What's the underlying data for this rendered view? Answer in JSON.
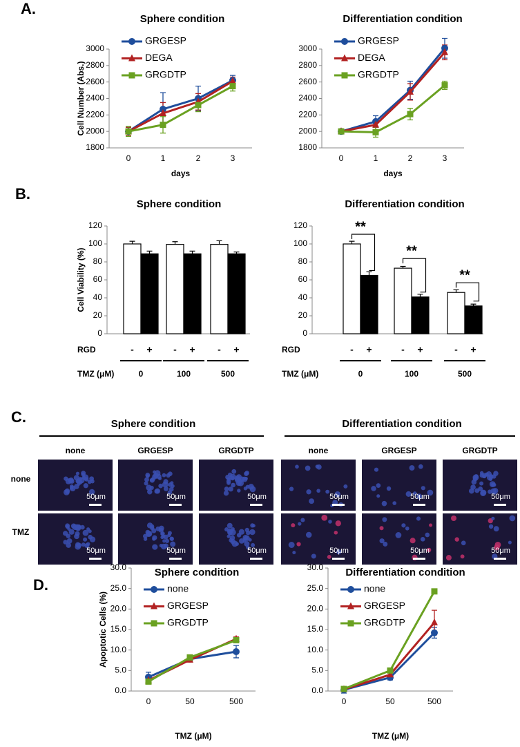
{
  "panel_labels": [
    "A.",
    "B.",
    "C.",
    "D."
  ],
  "panel_c": {
    "groups": [
      "Sphere condition",
      "Differentiation condition"
    ],
    "columns": [
      "none",
      "GRGESP",
      "GRGDTP"
    ],
    "rows": [
      "none",
      "TMZ"
    ],
    "scale_bar": "50μm"
  },
  "chart_data": [
    {
      "type": "line",
      "title": "Sphere condition",
      "y_label": "Cell Number  (Abs.)",
      "x_label": "days",
      "categories": [
        "0",
        "1",
        "2",
        "3"
      ],
      "ylim": [
        1800,
        3000
      ],
      "yticks": [
        1800,
        2000,
        2200,
        2400,
        2600,
        2800,
        3000
      ],
      "series": [
        {
          "name": "GRGESP",
          "color": "#1f4e9c",
          "values": [
            2000,
            2270,
            2400,
            2620
          ],
          "errors": [
            50,
            200,
            150,
            60
          ]
        },
        {
          "name": "DEGA",
          "color": "#b22222",
          "values": [
            2000,
            2220,
            2360,
            2610
          ],
          "errors": [
            50,
            130,
            100,
            50
          ]
        },
        {
          "name": "GRGDTP",
          "color": "#6aa121",
          "values": [
            2000,
            2080,
            2320,
            2550
          ],
          "errors": [
            60,
            100,
            80,
            60
          ]
        }
      ]
    },
    {
      "type": "line",
      "title": "Differentiation condition",
      "x_label": "days",
      "categories": [
        "0",
        "1",
        "2",
        "3"
      ],
      "ylim": [
        1800,
        3000
      ],
      "yticks": [
        1800,
        2000,
        2200,
        2400,
        2600,
        2800,
        3000
      ],
      "series": [
        {
          "name": "GRGESP",
          "color": "#1f4e9c",
          "values": [
            2000,
            2120,
            2500,
            3010
          ],
          "errors": [
            30,
            70,
            110,
            120
          ]
        },
        {
          "name": "DEGA",
          "color": "#b22222",
          "values": [
            2000,
            2080,
            2480,
            2960
          ],
          "errors": [
            30,
            60,
            100,
            90
          ]
        },
        {
          "name": "GRGDTP",
          "color": "#6aa121",
          "values": [
            2000,
            1990,
            2210,
            2560
          ],
          "errors": [
            30,
            60,
            70,
            50
          ]
        }
      ]
    },
    {
      "type": "bar",
      "title": "Sphere condition",
      "y_label": "Cell Viability (%)",
      "series_label": "RGD",
      "x_label": "TMZ (μM)",
      "categories": [
        "0",
        "100",
        "500"
      ],
      "ylim": [
        0,
        120
      ],
      "yticks": [
        0,
        20,
        40,
        60,
        80,
        100,
        120
      ],
      "series": [
        {
          "name": "-",
          "color": "#ffffff",
          "values": [
            100,
            99.5,
            99.5
          ],
          "errors": [
            3,
            3,
            4
          ]
        },
        {
          "name": "+",
          "color": "#000000",
          "values": [
            89,
            89,
            89
          ],
          "errors": [
            3,
            3,
            2
          ]
        }
      ]
    },
    {
      "type": "bar",
      "title": "Differentiation condition",
      "series_label": "RGD",
      "x_label": "TMZ (μM)",
      "categories": [
        "0",
        "100",
        "500"
      ],
      "ylim": [
        0,
        120
      ],
      "yticks": [
        0,
        20,
        40,
        60,
        80,
        100,
        120
      ],
      "annotations": [
        "**",
        "**",
        "**"
      ],
      "series": [
        {
          "name": "-",
          "color": "#ffffff",
          "values": [
            100,
            73,
            46
          ],
          "errors": [
            3,
            2,
            3
          ]
        },
        {
          "name": "+",
          "color": "#000000",
          "values": [
            65,
            41,
            31
          ],
          "errors": [
            4,
            3,
            2
          ]
        }
      ]
    },
    {
      "type": "line",
      "title": "Sphere condition",
      "y_label": "Apoptotic Cells (%)",
      "x_label": "TMZ (μM)",
      "categories": [
        "0",
        "50",
        "500"
      ],
      "ylim": [
        0,
        30
      ],
      "yticks": [
        {
          "value": 0,
          "label": "0.0"
        },
        {
          "value": 5,
          "label": "5.0"
        },
        {
          "value": 10,
          "label": "10.0"
        },
        {
          "value": 15,
          "label": "15.0"
        },
        {
          "value": 20,
          "label": "20.0"
        },
        {
          "value": 25,
          "label": "25.0"
        },
        {
          "value": 30,
          "label": "30.0"
        }
      ],
      "series": [
        {
          "name": "none",
          "color": "#1f4e9c",
          "values": [
            3.4,
            7.8,
            9.6
          ],
          "errors": [
            1.2,
            0.5,
            1.5
          ]
        },
        {
          "name": "GRGESP",
          "color": "#b22222",
          "values": [
            2.6,
            7.6,
            12.7
          ],
          "errors": [
            0.5,
            0.5,
            0.5
          ]
        },
        {
          "name": "GRGDTP",
          "color": "#6aa121",
          "values": [
            2.3,
            8.2,
            12.4
          ],
          "errors": [
            0.4,
            0.4,
            0.6
          ]
        }
      ]
    },
    {
      "type": "line",
      "title": "Differentiation condition",
      "x_label": "TMZ (μM)",
      "categories": [
        "0",
        "50",
        "500"
      ],
      "ylim": [
        0,
        30
      ],
      "yticks": [
        {
          "value": 0,
          "label": "0.0"
        },
        {
          "value": 5,
          "label": "5.0"
        },
        {
          "value": 10,
          "label": "10.0"
        },
        {
          "value": 15,
          "label": "15.0"
        },
        {
          "value": 20,
          "label": "20.0"
        },
        {
          "value": 25,
          "label": "25.0"
        },
        {
          "value": 30,
          "label": "30.0"
        }
      ],
      "series": [
        {
          "name": "none",
          "color": "#1f4e9c",
          "values": [
            0.3,
            3.3,
            14.2
          ],
          "errors": [
            0.8,
            0.6,
            1.3
          ]
        },
        {
          "name": "GRGESP",
          "color": "#b22222",
          "values": [
            0.4,
            4.0,
            16.7
          ],
          "errors": [
            0.5,
            0.5,
            3
          ]
        },
        {
          "name": "GRGDTP",
          "color": "#6aa121",
          "values": [
            0.5,
            5.0,
            24.3
          ],
          "errors": [
            0.4,
            0.4,
            0.3
          ]
        }
      ]
    }
  ]
}
